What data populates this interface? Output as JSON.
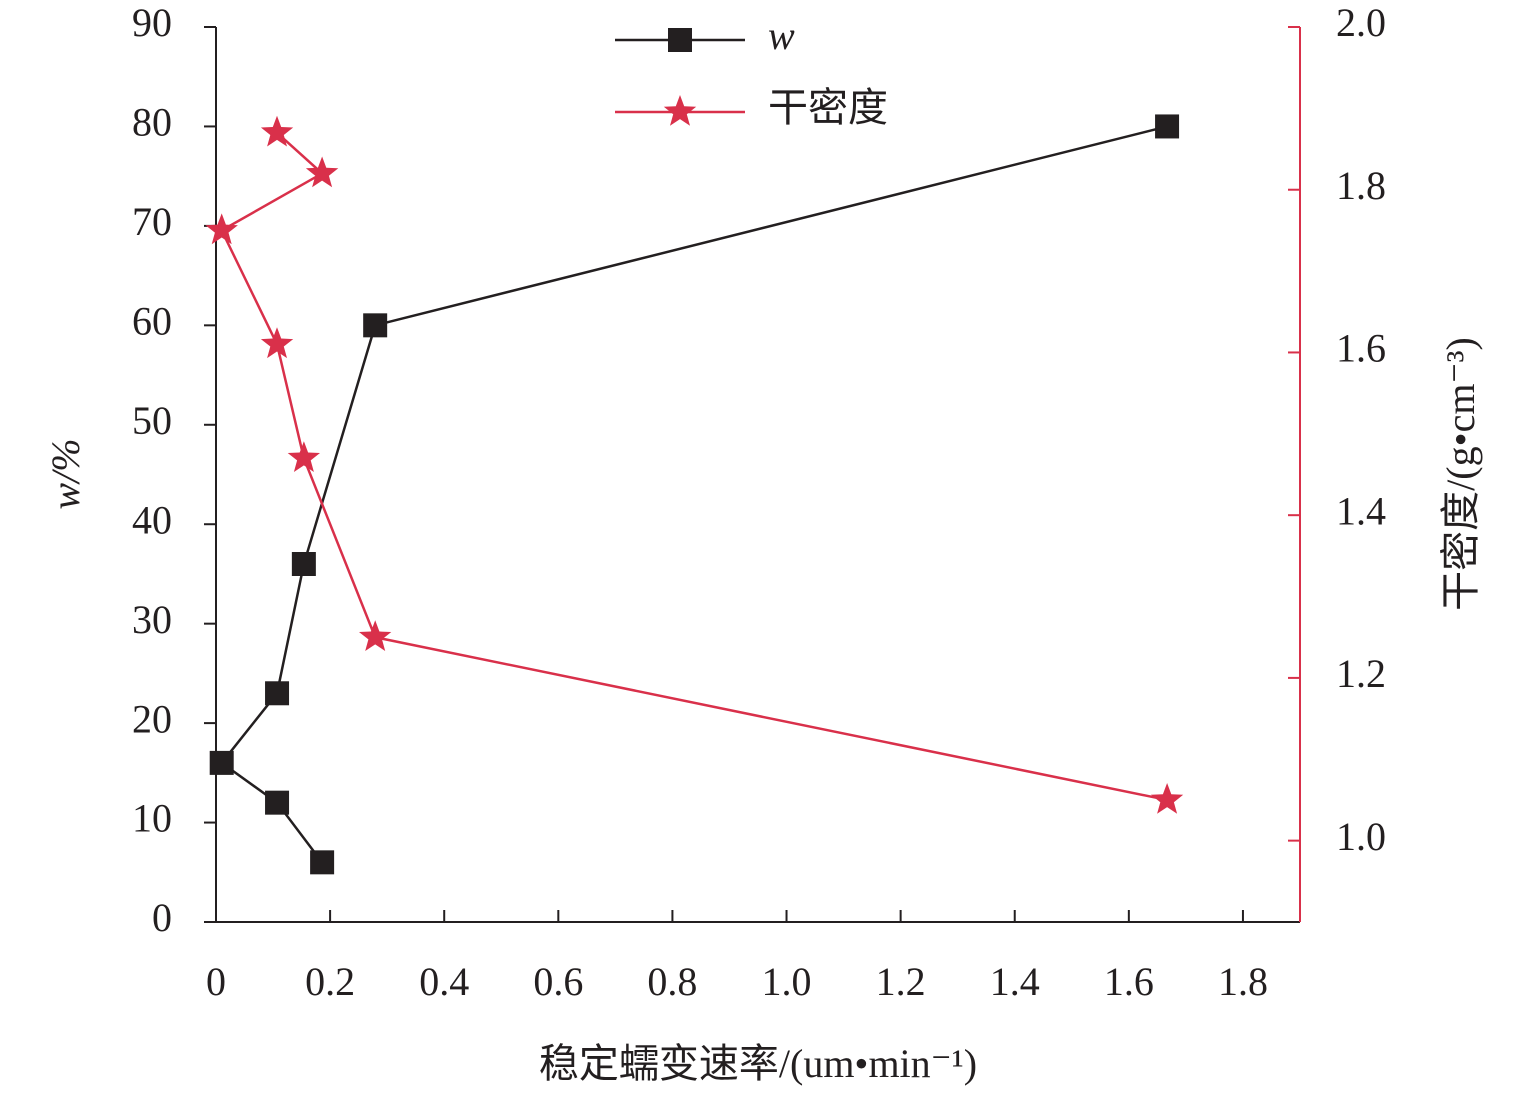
{
  "chart_data": {
    "type": "line",
    "xlabel": "稳定蠕变速率/(um•min⁻¹)",
    "ylabel": "w/%",
    "y2label": "干密度/(g•cm⁻³)",
    "xlim": [
      0,
      1.9
    ],
    "xticks": [
      0,
      0.2,
      0.4,
      0.6,
      0.8,
      {
        "value": 1,
        "label": "1.0"
      },
      1.2,
      1.4,
      1.6,
      1.8
    ],
    "ylim": [
      0,
      90
    ],
    "yticks": [
      0,
      10,
      20,
      30,
      40,
      50,
      60,
      70,
      80,
      90
    ],
    "y2lim": [
      0.9,
      2.0
    ],
    "y2ticks": [
      {
        "value": 1,
        "label": "1.0"
      },
      1.2,
      1.4,
      1.6,
      1.8,
      {
        "value": 2,
        "label": "2.0"
      }
    ],
    "legend": "top",
    "series": [
      {
        "name": "w",
        "color": "#231f20",
        "marker": "square",
        "x": [
          0.186,
          0.107,
          0.01,
          0.107,
          0.154,
          0.279,
          1.667
        ],
        "values": [
          6,
          12,
          16,
          23,
          36,
          60,
          80
        ]
      },
      {
        "name": "干密度",
        "color": "#d9304a",
        "marker": "star",
        "axis": "y2",
        "x": [
          0.107,
          0.186,
          0.01,
          0.107,
          0.154,
          0.279,
          1.667
        ],
        "values": [
          1.87,
          1.82,
          1.75,
          1.61,
          1.47,
          1.25,
          1.05
        ]
      }
    ]
  }
}
